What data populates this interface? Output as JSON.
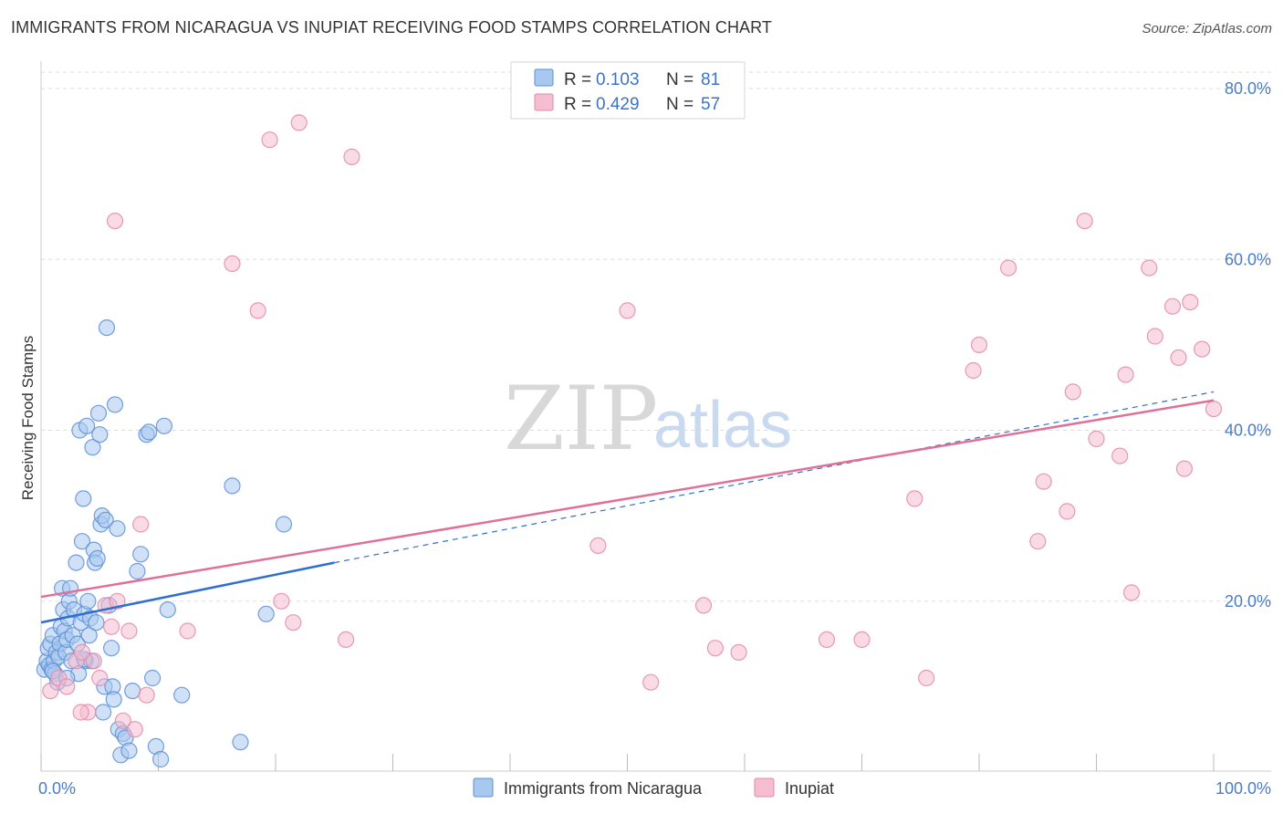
{
  "header": {
    "title": "IMMIGRANTS FROM NICARAGUA VS INUPIAT RECEIVING FOOD STAMPS CORRELATION CHART",
    "source": "Source: ZipAtlas.com"
  },
  "watermark": {
    "part1": "ZIP",
    "part2": "atlas"
  },
  "legend": {
    "r_label": "R =",
    "n_label": "N =",
    "rows": [
      {
        "r": "0.103",
        "n": "81"
      },
      {
        "r": "0.429",
        "n": "57"
      }
    ]
  },
  "colors": {
    "blue_fill": "#a9c8f0",
    "blue_stroke": "#5b8fd6",
    "blue_line": "#2f6fd0",
    "pink_fill": "#f6bcd0",
    "pink_stroke": "#e28aa8",
    "pink_line": "#e07098",
    "grid": "#dddddd",
    "axis_text": "#4a7cc9"
  },
  "chart_data": {
    "type": "scatter",
    "title": "IMMIGRANTS FROM NICARAGUA VS INUPIAT RECEIVING FOOD STAMPS CORRELATION CHART",
    "xlabel": "",
    "ylabel": "Receiving Food Stamps",
    "xlim": [
      0,
      100
    ],
    "ylim": [
      0,
      80
    ],
    "x_ticks": [
      {
        "value": 0,
        "label": "0.0%"
      },
      {
        "value": 100,
        "label": "100.0%"
      }
    ],
    "x_minor_ticks": [
      0,
      10,
      20,
      30,
      40,
      50,
      60,
      70,
      80,
      90,
      100
    ],
    "y_ticks": [
      {
        "value": 20,
        "label": "20.0%"
      },
      {
        "value": 40,
        "label": "40.0%"
      },
      {
        "value": 60,
        "label": "60.0%"
      },
      {
        "value": 80,
        "label": "80.0%"
      }
    ],
    "series": [
      {
        "name": "Immigrants from Nicaragua",
        "color": "blue",
        "r": 0.103,
        "n": 81,
        "trend": {
          "x_start": 0,
          "y_start": 17.5,
          "x_solid_end": 25,
          "y_solid_end": 24.5,
          "x_dash_end": 100,
          "y_dash_end": 44.5
        },
        "points": [
          [
            0.3,
            12
          ],
          [
            0.5,
            13
          ],
          [
            0.6,
            14.5
          ],
          [
            0.7,
            12.5
          ],
          [
            0.8,
            15
          ],
          [
            0.9,
            12
          ],
          [
            1.0,
            16
          ],
          [
            1.1,
            13
          ],
          [
            1.2,
            11.5
          ],
          [
            1.3,
            14
          ],
          [
            1.4,
            10.5
          ],
          [
            1.5,
            13.5
          ],
          [
            1.6,
            15
          ],
          [
            1.7,
            17
          ],
          [
            1.8,
            21.5
          ],
          [
            1.9,
            19
          ],
          [
            2.0,
            16.5
          ],
          [
            2.1,
            14
          ],
          [
            2.2,
            15.5
          ],
          [
            2.3,
            18
          ],
          [
            2.4,
            20
          ],
          [
            2.5,
            21.5
          ],
          [
            2.6,
            13
          ],
          [
            2.7,
            16
          ],
          [
            2.8,
            19
          ],
          [
            3.0,
            24.5
          ],
          [
            3.1,
            15
          ],
          [
            3.2,
            11.5
          ],
          [
            3.3,
            40
          ],
          [
            3.4,
            17.5
          ],
          [
            3.5,
            27
          ],
          [
            3.6,
            32
          ],
          [
            3.7,
            18.5
          ],
          [
            3.8,
            13
          ],
          [
            3.9,
            40.5
          ],
          [
            4.0,
            20
          ],
          [
            4.1,
            16
          ],
          [
            4.2,
            18
          ],
          [
            4.3,
            13
          ],
          [
            4.4,
            38
          ],
          [
            4.5,
            26
          ],
          [
            4.6,
            24.5
          ],
          [
            4.7,
            17.5
          ],
          [
            4.8,
            25
          ],
          [
            4.9,
            42
          ],
          [
            5.0,
            39.5
          ],
          [
            5.1,
            29
          ],
          [
            5.2,
            30
          ],
          [
            5.3,
            7
          ],
          [
            5.4,
            10
          ],
          [
            5.5,
            29.5
          ],
          [
            5.6,
            52
          ],
          [
            5.8,
            19.5
          ],
          [
            6.0,
            14.5
          ],
          [
            6.1,
            10
          ],
          [
            6.2,
            8.5
          ],
          [
            6.3,
            43
          ],
          [
            6.5,
            28.5
          ],
          [
            6.6,
            5
          ],
          [
            6.8,
            2
          ],
          [
            7.0,
            4.5
          ],
          [
            7.2,
            4
          ],
          [
            7.5,
            2.5
          ],
          [
            7.8,
            9.5
          ],
          [
            8.2,
            23.5
          ],
          [
            8.5,
            25.5
          ],
          [
            9.0,
            39.5
          ],
          [
            9.2,
            39.8
          ],
          [
            9.5,
            11
          ],
          [
            9.8,
            3
          ],
          [
            10.2,
            1.5
          ],
          [
            10.5,
            40.5
          ],
          [
            10.8,
            19
          ],
          [
            12.0,
            9
          ],
          [
            16.3,
            33.5
          ],
          [
            17.0,
            3.5
          ],
          [
            19.2,
            18.5
          ],
          [
            20.7,
            29
          ],
          [
            2.2,
            11
          ],
          [
            1.0,
            11.8
          ],
          [
            3.7,
            13.2
          ]
        ]
      },
      {
        "name": "Inupiat",
        "color": "pink",
        "r": 0.429,
        "n": 57,
        "trend": {
          "x_start": 0,
          "y_start": 20.5,
          "x_end": 100,
          "y_end": 43.5
        },
        "points": [
          [
            0.8,
            9.5
          ],
          [
            1.5,
            11
          ],
          [
            2.2,
            10
          ],
          [
            3.0,
            13
          ],
          [
            3.5,
            14
          ],
          [
            4.0,
            7
          ],
          [
            4.5,
            13
          ],
          [
            5.0,
            11
          ],
          [
            5.5,
            19.5
          ],
          [
            6.0,
            17
          ],
          [
            6.5,
            20
          ],
          [
            7.0,
            6
          ],
          [
            7.5,
            16.5
          ],
          [
            8.0,
            5
          ],
          [
            8.5,
            29
          ],
          [
            9.0,
            9
          ],
          [
            6.3,
            64.5
          ],
          [
            12.5,
            16.5
          ],
          [
            16.3,
            59.5
          ],
          [
            18.5,
            54
          ],
          [
            19.5,
            74
          ],
          [
            20.5,
            20
          ],
          [
            21.5,
            17.5
          ],
          [
            22.0,
            76
          ],
          [
            26.0,
            15.5
          ],
          [
            26.5,
            72
          ],
          [
            47.5,
            26.5
          ],
          [
            50.0,
            54
          ],
          [
            52.0,
            10.5
          ],
          [
            56.5,
            19.5
          ],
          [
            57.5,
            14.5
          ],
          [
            59.5,
            14
          ],
          [
            67.0,
            15.5
          ],
          [
            70.0,
            15.5
          ],
          [
            74.5,
            32
          ],
          [
            75.5,
            11
          ],
          [
            79.5,
            47
          ],
          [
            80.0,
            50
          ],
          [
            82.5,
            59
          ],
          [
            85.0,
            27
          ],
          [
            85.5,
            34
          ],
          [
            87.5,
            30.5
          ],
          [
            88.0,
            44.5
          ],
          [
            89.0,
            64.5
          ],
          [
            90.0,
            39
          ],
          [
            92.0,
            37
          ],
          [
            92.5,
            46.5
          ],
          [
            93.0,
            21
          ],
          [
            94.5,
            59
          ],
          [
            95.0,
            51
          ],
          [
            96.5,
            54.5
          ],
          [
            97.0,
            48.5
          ],
          [
            97.5,
            35.5
          ],
          [
            98.0,
            55
          ],
          [
            99.0,
            49.5
          ],
          [
            100.0,
            42.5
          ],
          [
            3.4,
            7
          ]
        ]
      }
    ]
  },
  "bottom_legend": [
    {
      "label": "Immigrants from Nicaragua",
      "color": "blue"
    },
    {
      "label": "Inupiat",
      "color": "pink"
    }
  ]
}
